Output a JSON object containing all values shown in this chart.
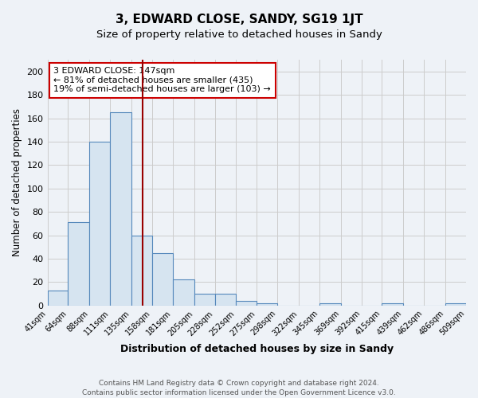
{
  "title": "3, EDWARD CLOSE, SANDY, SG19 1JT",
  "subtitle": "Size of property relative to detached houses in Sandy",
  "xlabel": "Distribution of detached houses by size in Sandy",
  "ylabel": "Number of detached properties",
  "bin_edges": [
    41,
    64,
    88,
    111,
    135,
    158,
    181,
    205,
    228,
    252,
    275,
    298,
    322,
    345,
    369,
    392,
    415,
    439,
    462,
    486,
    509
  ],
  "bar_heights": [
    13,
    71,
    140,
    165,
    60,
    45,
    22,
    10,
    10,
    4,
    2,
    0,
    0,
    2,
    0,
    0,
    2,
    0,
    0,
    2
  ],
  "bar_color": "#d6e4f0",
  "bar_edge_color": "#5588bb",
  "property_size": 147,
  "vline_color": "#990000",
  "annotation_text": "3 EDWARD CLOSE: 147sqm\n← 81% of detached houses are smaller (435)\n19% of semi-detached houses are larger (103) →",
  "annotation_box_color": "#ffffff",
  "annotation_box_edge": "#cc0000",
  "ylim": [
    0,
    210
  ],
  "yticks": [
    0,
    20,
    40,
    60,
    80,
    100,
    120,
    140,
    160,
    180,
    200
  ],
  "tick_labels": [
    "41sqm",
    "64sqm",
    "88sqm",
    "111sqm",
    "135sqm",
    "158sqm",
    "181sqm",
    "205sqm",
    "228sqm",
    "252sqm",
    "275sqm",
    "298sqm",
    "322sqm",
    "345sqm",
    "369sqm",
    "392sqm",
    "415sqm",
    "439sqm",
    "462sqm",
    "486sqm",
    "509sqm"
  ],
  "footer_line1": "Contains HM Land Registry data © Crown copyright and database right 2024.",
  "footer_line2": "Contains public sector information licensed under the Open Government Licence v3.0.",
  "background_color": "#eef2f7",
  "plot_bg_color": "#eef2f7",
  "grid_color": "#cccccc",
  "title_fontsize": 11,
  "subtitle_fontsize": 9.5,
  "xlabel_fontsize": 9,
  "ylabel_fontsize": 8.5,
  "footer_fontsize": 6.5,
  "annot_fontsize": 8
}
